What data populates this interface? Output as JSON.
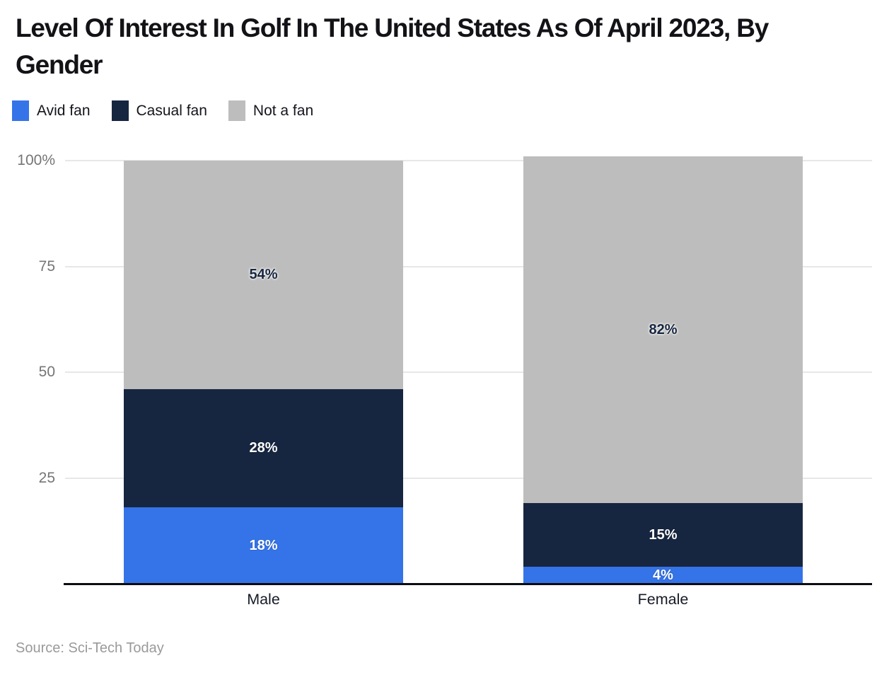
{
  "title": "Level Of Interest In Golf In The United States As Of April 2023, By Gender",
  "legend": {
    "items": [
      {
        "label": "Avid fan",
        "color": "#3574e8"
      },
      {
        "label": "Casual fan",
        "color": "#172640"
      },
      {
        "label": "Not a fan",
        "color": "#bdbdbd"
      }
    ]
  },
  "source_label": "Source: Sci-Tech Today",
  "colors": {
    "avid_fan": "#3574e8",
    "casual_fan": "#172640",
    "not_a_fan": "#bdbdbd",
    "gridline": "#e7e7e7",
    "axis_line": "#0c0d12",
    "y_tick_text": "#757575",
    "label_on_gray": "#172640",
    "label_on_color": "#ffffff"
  },
  "chart_data": {
    "type": "bar",
    "stacked": true,
    "title": "Level Of Interest In Golf In The United States As Of April 2023, By Gender",
    "categories": [
      "Male",
      "Female"
    ],
    "series": [
      {
        "name": "Avid fan",
        "color": "#3574e8",
        "label_color": "#ffffff",
        "values": [
          18,
          4
        ]
      },
      {
        "name": "Casual fan",
        "color": "#172640",
        "label_color": "#ffffff",
        "values": [
          28,
          15
        ]
      },
      {
        "name": "Not a fan",
        "color": "#bdbdbd",
        "label_color": "#172640",
        "values": [
          54,
          82
        ]
      }
    ],
    "value_suffix": "%",
    "data_labels": {
      "Male": {
        "Avid fan": "18%",
        "Casual fan": "28%",
        "Not a fan": "54%"
      },
      "Female": {
        "Avid fan": "4%",
        "Casual fan": "15%",
        "Not a fan": "82%"
      }
    },
    "xlabel": "",
    "ylabel": "",
    "y_ticks": [
      "100%",
      "75",
      "50",
      "25"
    ],
    "y_tick_values": [
      100,
      75,
      50,
      25
    ],
    "ylim": [
      0,
      100
    ],
    "grid": true,
    "legend_position": "top-left"
  }
}
